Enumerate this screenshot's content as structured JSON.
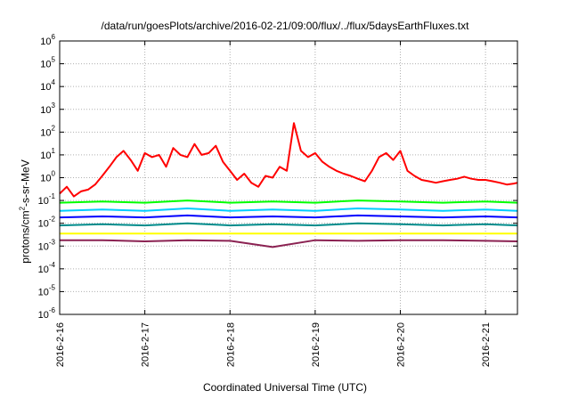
{
  "chart_data": {
    "type": "line",
    "title": "/data/run/goesPlots/archive/2016-02-21/09:00/flux/../flux/5daysEarthFluxes.txt",
    "xlabel": "Coordinated Universal Time (UTC)",
    "ylabel": {
      "pre": "protons/cm",
      "sup": "2",
      "post": "-s-sr-MeV"
    },
    "yscale": "log",
    "ylim": [
      1e-06,
      1000000.0
    ],
    "yticks": [
      {
        "base": "10",
        "exp": "-6"
      },
      {
        "base": "10",
        "exp": "-5"
      },
      {
        "base": "10",
        "exp": "-4"
      },
      {
        "base": "10",
        "exp": "-3"
      },
      {
        "base": "10",
        "exp": "-2"
      },
      {
        "base": "10",
        "exp": "-1"
      },
      {
        "base": "10",
        "exp": "0"
      },
      {
        "base": "10",
        "exp": "1"
      },
      {
        "base": "10",
        "exp": "2"
      },
      {
        "base": "10",
        "exp": "3"
      },
      {
        "base": "10",
        "exp": "4"
      },
      {
        "base": "10",
        "exp": "5"
      },
      {
        "base": "10",
        "exp": "6"
      }
    ],
    "xlim": [
      "2016-2-16 00:00",
      "2016-2-21 09:00"
    ],
    "xticks": [
      "2016-2-16",
      "2016-2-17",
      "2016-2-18",
      "2016-2-19",
      "2016-2-20",
      "2016-2-21"
    ],
    "grid": true,
    "series": [
      {
        "color": "#ff0000",
        "x": [
          "2016-2-16 00:00",
          "2016-2-16 02:00",
          "2016-2-16 04:00",
          "2016-2-16 06:00",
          "2016-2-16 08:00",
          "2016-2-16 10:00",
          "2016-2-16 12:00",
          "2016-2-16 14:00",
          "2016-2-16 16:00",
          "2016-2-16 18:00",
          "2016-2-16 20:00",
          "2016-2-16 22:00",
          "2016-2-17 00:00",
          "2016-2-17 02:00",
          "2016-2-17 04:00",
          "2016-2-17 06:00",
          "2016-2-17 08:00",
          "2016-2-17 10:00",
          "2016-2-17 12:00",
          "2016-2-17 14:00",
          "2016-2-17 16:00",
          "2016-2-17 18:00",
          "2016-2-17 20:00",
          "2016-2-17 22:00",
          "2016-2-18 00:00",
          "2016-2-18 02:00",
          "2016-2-18 04:00",
          "2016-2-18 06:00",
          "2016-2-18 08:00",
          "2016-2-18 10:00",
          "2016-2-18 12:00",
          "2016-2-18 14:00",
          "2016-2-18 16:00",
          "2016-2-18 18:00",
          "2016-2-18 20:00",
          "2016-2-18 22:00",
          "2016-2-19 00:00",
          "2016-2-19 02:00",
          "2016-2-19 04:00",
          "2016-2-19 06:00",
          "2016-2-19 08:00",
          "2016-2-19 10:00",
          "2016-2-19 12:00",
          "2016-2-19 14:00",
          "2016-2-19 16:00",
          "2016-2-19 18:00",
          "2016-2-19 20:00",
          "2016-2-19 22:00",
          "2016-2-20 00:00",
          "2016-2-20 02:00",
          "2016-2-20 04:00",
          "2016-2-20 06:00",
          "2016-2-20 08:00",
          "2016-2-20 10:00",
          "2016-2-20 12:00",
          "2016-2-20 14:00",
          "2016-2-20 16:00",
          "2016-2-20 18:00",
          "2016-2-20 20:00",
          "2016-2-20 22:00",
          "2016-2-21 00:00",
          "2016-2-21 02:00",
          "2016-2-21 04:00",
          "2016-2-21 06:00",
          "2016-2-21 08:00",
          "2016-2-21 09:00"
        ],
        "y": [
          0.2,
          0.4,
          0.15,
          0.25,
          0.3,
          0.5,
          1.2,
          3,
          8,
          15,
          6,
          2,
          12,
          8,
          10,
          3,
          20,
          10,
          8,
          30,
          10,
          12,
          25,
          5,
          2,
          0.8,
          1.5,
          0.6,
          0.4,
          1.2,
          1.0,
          3,
          2,
          250,
          15,
          8,
          12,
          5,
          3,
          2,
          1.5,
          1.2,
          0.9,
          0.7,
          2,
          8,
          12,
          6,
          15,
          2,
          1.2,
          0.8,
          0.7,
          0.6,
          0.7,
          0.8,
          0.9,
          1.1,
          0.9,
          0.8,
          0.8,
          0.7,
          0.6,
          0.5,
          0.55,
          0.6
        ]
      },
      {
        "color": "#00ff00",
        "x": [
          "2016-2-16 00:00",
          "2016-2-16 12:00",
          "2016-2-17 00:00",
          "2016-2-17 12:00",
          "2016-2-18 00:00",
          "2016-2-18 12:00",
          "2016-2-19 00:00",
          "2016-2-19 12:00",
          "2016-2-20 00:00",
          "2016-2-20 12:00",
          "2016-2-21 00:00",
          "2016-2-21 09:00"
        ],
        "y": [
          0.08,
          0.09,
          0.08,
          0.1,
          0.08,
          0.09,
          0.08,
          0.1,
          0.09,
          0.08,
          0.09,
          0.08
        ]
      },
      {
        "color": "#00ccff",
        "x": [
          "2016-2-16 00:00",
          "2016-2-16 12:00",
          "2016-2-17 00:00",
          "2016-2-17 12:00",
          "2016-2-18 00:00",
          "2016-2-18 12:00",
          "2016-2-19 00:00",
          "2016-2-19 12:00",
          "2016-2-20 00:00",
          "2016-2-20 12:00",
          "2016-2-21 00:00",
          "2016-2-21 09:00"
        ],
        "y": [
          0.035,
          0.04,
          0.035,
          0.045,
          0.035,
          0.04,
          0.035,
          0.045,
          0.04,
          0.035,
          0.04,
          0.035
        ]
      },
      {
        "color": "#0000ff",
        "x": [
          "2016-2-16 00:00",
          "2016-2-16 12:00",
          "2016-2-17 00:00",
          "2016-2-17 12:00",
          "2016-2-18 00:00",
          "2016-2-18 12:00",
          "2016-2-19 00:00",
          "2016-2-19 12:00",
          "2016-2-20 00:00",
          "2016-2-20 12:00",
          "2016-2-21 00:00",
          "2016-2-21 09:00"
        ],
        "y": [
          0.018,
          0.02,
          0.018,
          0.022,
          0.018,
          0.02,
          0.018,
          0.022,
          0.02,
          0.018,
          0.02,
          0.018
        ]
      },
      {
        "color": "#008b8b",
        "x": [
          "2016-2-16 00:00",
          "2016-2-16 12:00",
          "2016-2-17 00:00",
          "2016-2-17 12:00",
          "2016-2-18 00:00",
          "2016-2-18 12:00",
          "2016-2-19 00:00",
          "2016-2-19 12:00",
          "2016-2-20 00:00",
          "2016-2-20 12:00",
          "2016-2-21 00:00",
          "2016-2-21 09:00"
        ],
        "y": [
          0.008,
          0.009,
          0.008,
          0.01,
          0.008,
          0.009,
          0.008,
          0.01,
          0.009,
          0.008,
          0.009,
          0.008
        ]
      },
      {
        "color": "#ffff00",
        "x": [
          "2016-2-16 00:00",
          "2016-2-16 12:00",
          "2016-2-17 00:00",
          "2016-2-17 12:00",
          "2016-2-18 00:00",
          "2016-2-18 12:00",
          "2016-2-19 00:00",
          "2016-2-19 12:00",
          "2016-2-20 00:00",
          "2016-2-20 12:00",
          "2016-2-21 00:00",
          "2016-2-21 09:00"
        ],
        "y": [
          0.0035,
          0.0035,
          0.0035,
          0.0035,
          0.0035,
          0.0035,
          0.0035,
          0.0035,
          0.0035,
          0.0035,
          0.0035,
          0.0035
        ]
      },
      {
        "color": "#8b2252",
        "x": [
          "2016-2-16 00:00",
          "2016-2-16 12:00",
          "2016-2-17 00:00",
          "2016-2-17 12:00",
          "2016-2-18 00:00",
          "2016-2-18 12:00",
          "2016-2-19 00:00",
          "2016-2-19 12:00",
          "2016-2-20 00:00",
          "2016-2-20 12:00",
          "2016-2-21 00:00",
          "2016-2-21 09:00"
        ],
        "y": [
          0.0018,
          0.0018,
          0.0016,
          0.0018,
          0.0017,
          0.0009,
          0.0018,
          0.0017,
          0.0018,
          0.0018,
          0.0017,
          0.0016
        ]
      }
    ]
  }
}
